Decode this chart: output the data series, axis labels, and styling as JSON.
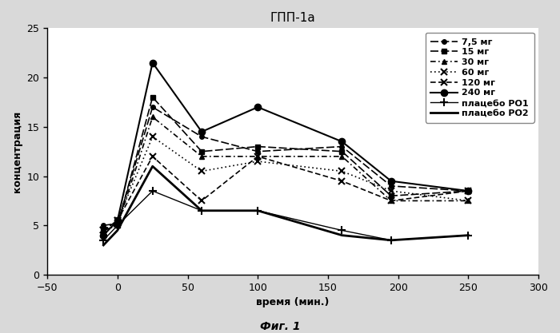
{
  "title": "ГПП-1а",
  "xlabel": "время (мин.)",
  "ylabel": "концентрация",
  "caption": "Фиг. 1",
  "xlim": [
    -50,
    300
  ],
  "ylim": [
    0,
    25
  ],
  "xticks": [
    -50,
    0,
    50,
    100,
    150,
    200,
    250,
    300
  ],
  "yticks": [
    0,
    5,
    10,
    15,
    20,
    25
  ],
  "series": [
    {
      "label": "7,5 мг",
      "x": [
        -10,
        0,
        25,
        60,
        100,
        160,
        195,
        250
      ],
      "y": [
        5.0,
        5.2,
        17.0,
        14.0,
        12.5,
        13.0,
        9.0,
        8.5
      ],
      "color": "#000000",
      "linestyle": "--",
      "marker": "o",
      "markersize": 4,
      "linewidth": 1.2,
      "dashes": [
        6,
        2
      ]
    },
    {
      "label": "15 мг",
      "x": [
        -10,
        0,
        25,
        60,
        100,
        160,
        195,
        250
      ],
      "y": [
        4.5,
        5.0,
        18.0,
        12.5,
        13.0,
        12.5,
        8.0,
        8.5
      ],
      "color": "#000000",
      "linestyle": "--",
      "marker": "s",
      "markersize": 4,
      "linewidth": 1.2,
      "dashes": [
        6,
        2
      ]
    },
    {
      "label": "30 мг",
      "x": [
        -10,
        0,
        25,
        60,
        100,
        160,
        195,
        250
      ],
      "y": [
        4.5,
        5.0,
        16.0,
        12.0,
        12.0,
        12.0,
        7.5,
        7.5
      ],
      "color": "#000000",
      "linestyle": "--",
      "marker": "^",
      "markersize": 5,
      "linewidth": 1.2,
      "dashes": [
        4,
        2,
        1,
        2
      ]
    },
    {
      "label": "60 мг",
      "x": [
        -10,
        0,
        25,
        60,
        100,
        160,
        195,
        250
      ],
      "y": [
        4.5,
        5.5,
        14.0,
        10.5,
        11.5,
        10.5,
        8.5,
        7.5
      ],
      "color": "#000000",
      "linestyle": ":",
      "marker": "x",
      "markersize": 6,
      "linewidth": 1.2,
      "dashes": [
        1,
        2
      ]
    },
    {
      "label": "120 мг",
      "x": [
        -10,
        0,
        25,
        60,
        100,
        160,
        195,
        250
      ],
      "y": [
        4.5,
        5.5,
        12.0,
        7.5,
        12.0,
        9.5,
        7.5,
        8.5
      ],
      "color": "#000000",
      "linestyle": "--",
      "marker": "x",
      "markersize": 6,
      "linewidth": 1.2,
      "dashes": [
        4,
        2
      ]
    },
    {
      "label": "240 мг",
      "x": [
        -10,
        0,
        25,
        60,
        100,
        160,
        195,
        250
      ],
      "y": [
        4.0,
        5.5,
        21.5,
        14.5,
        17.0,
        13.5,
        9.5,
        8.5
      ],
      "color": "#000000",
      "linestyle": "-",
      "marker": "o",
      "markersize": 6,
      "linewidth": 1.5,
      "dashes": []
    },
    {
      "label": "плацебо РО1",
      "x": [
        -10,
        0,
        25,
        60,
        100,
        160,
        195,
        250
      ],
      "y": [
        3.5,
        5.0,
        8.5,
        6.5,
        6.5,
        4.5,
        3.5,
        4.0
      ],
      "color": "#000000",
      "linestyle": "-",
      "marker": "+",
      "markersize": 7,
      "linewidth": 1.0,
      "dashes": []
    },
    {
      "label": "плацебо РО2",
      "x": [
        -10,
        0,
        25,
        60,
        100,
        160,
        195,
        250
      ],
      "y": [
        3.0,
        4.5,
        11.0,
        6.5,
        6.5,
        4.0,
        3.5,
        4.0
      ],
      "color": "#000000",
      "linestyle": "-",
      "marker": null,
      "markersize": 5,
      "linewidth": 2.0,
      "dashes": []
    }
  ],
  "background_color": "#d9d9d9",
  "plot_bg_color": "#ffffff"
}
